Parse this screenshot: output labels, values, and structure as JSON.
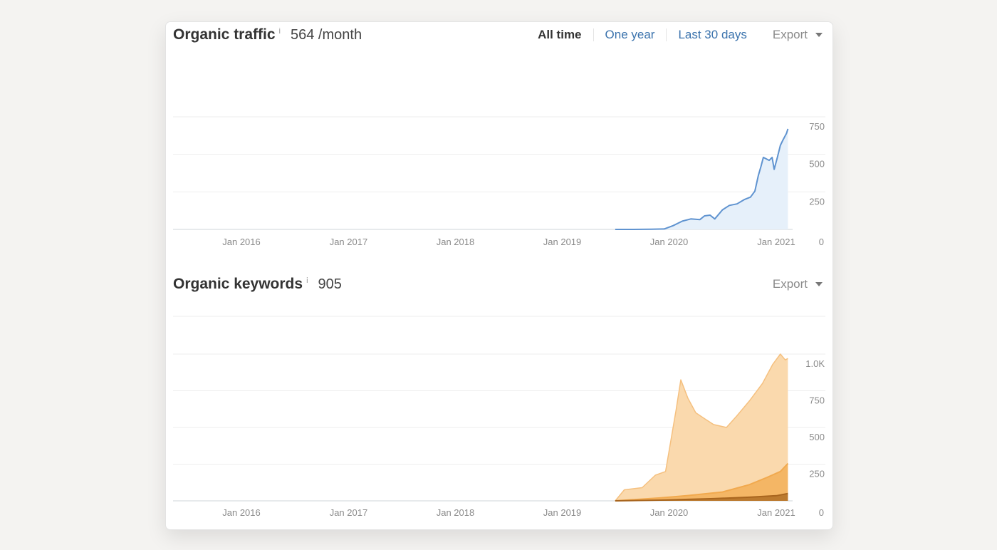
{
  "traffic": {
    "title": "Organic traffic",
    "info": "i",
    "metric": "564 /month",
    "tabs": [
      "All time",
      "One year",
      "Last 30 days"
    ],
    "export_label": "Export",
    "line_color": "#5f93d0",
    "fill_color": "#e6f0fa"
  },
  "keywords": {
    "title": "Organic keywords",
    "info": "i",
    "metric": "905",
    "export_label": "Export",
    "colors": [
      "#fad9ad",
      "#f1a94e",
      "#a8651e"
    ]
  },
  "chart_data": [
    {
      "type": "line",
      "title": "Organic traffic",
      "x_tick_labels": [
        "Jan 2016",
        "Jan 2017",
        "Jan 2018",
        "Jan 2019",
        "Jan 2020",
        "Jan 2021"
      ],
      "y_tick_labels": [
        "750",
        "500",
        "250",
        "0"
      ],
      "ylim": [
        0,
        750
      ],
      "grid": true,
      "series": [
        {
          "values": [
            [
              "2019-07-01",
              0
            ],
            [
              "2019-09-01",
              0
            ],
            [
              "2019-11-01",
              1
            ],
            [
              "2019-12-15",
              3
            ],
            [
              "2020-01-15",
              25
            ],
            [
              "2020-02-15",
              55
            ],
            [
              "2020-03-15",
              70
            ],
            [
              "2020-04-15",
              65
            ],
            [
              "2020-05-01",
              90
            ],
            [
              "2020-05-20",
              95
            ],
            [
              "2020-06-05",
              70
            ],
            [
              "2020-07-01",
              130
            ],
            [
              "2020-07-25",
              160
            ],
            [
              "2020-08-20",
              170
            ],
            [
              "2020-09-15",
              200
            ],
            [
              "2020-10-05",
              215
            ],
            [
              "2020-10-20",
              255
            ],
            [
              "2020-11-01",
              360
            ],
            [
              "2020-11-10",
              420
            ],
            [
              "2020-11-18",
              480
            ],
            [
              "2020-11-28",
              470
            ],
            [
              "2020-12-08",
              460
            ],
            [
              "2020-12-18",
              480
            ],
            [
              "2020-12-25",
              400
            ],
            [
              "2021-01-05",
              480
            ],
            [
              "2021-01-15",
              560
            ],
            [
              "2021-01-25",
              600
            ],
            [
              "2021-02-05",
              640
            ],
            [
              "2021-02-10",
              670
            ]
          ]
        }
      ]
    },
    {
      "type": "area",
      "title": "Organic keywords",
      "x_tick_labels": [
        "Jan 2016",
        "Jan 2017",
        "Jan 2018",
        "Jan 2019",
        "Jan 2020",
        "Jan 2021"
      ],
      "y_tick_labels": [
        "1.0K",
        "750",
        "500",
        "250",
        "0"
      ],
      "ylim": [
        0,
        1000
      ],
      "grid": true,
      "series": [
        {
          "values": [
            [
              "2019-07-01",
              0
            ],
            [
              "2019-08-01",
              75
            ],
            [
              "2019-10-01",
              90
            ],
            [
              "2019-11-15",
              175
            ],
            [
              "2019-12-20",
              200
            ],
            [
              "2020-01-25",
              620
            ],
            [
              "2020-02-10",
              825
            ],
            [
              "2020-03-05",
              700
            ],
            [
              "2020-04-01",
              600
            ],
            [
              "2020-05-01",
              560
            ],
            [
              "2020-06-01",
              520
            ],
            [
              "2020-07-15",
              500
            ],
            [
              "2020-08-20",
              580
            ],
            [
              "2020-10-01",
              680
            ],
            [
              "2020-11-15",
              800
            ],
            [
              "2020-12-20",
              930
            ],
            [
              "2021-01-15",
              1000
            ],
            [
              "2021-02-01",
              960
            ],
            [
              "2021-02-10",
              970
            ]
          ]
        },
        {
          "values": [
            [
              "2019-07-01",
              0
            ],
            [
              "2019-12-01",
              20
            ],
            [
              "2020-03-01",
              35
            ],
            [
              "2020-07-01",
              60
            ],
            [
              "2020-10-01",
              110
            ],
            [
              "2020-12-01",
              160
            ],
            [
              "2021-01-15",
              200
            ],
            [
              "2021-02-10",
              255
            ]
          ]
        },
        {
          "values": [
            [
              "2019-07-01",
              0
            ],
            [
              "2019-12-01",
              5
            ],
            [
              "2020-06-01",
              15
            ],
            [
              "2020-10-01",
              25
            ],
            [
              "2021-01-01",
              35
            ],
            [
              "2021-02-10",
              50
            ]
          ]
        }
      ]
    }
  ]
}
